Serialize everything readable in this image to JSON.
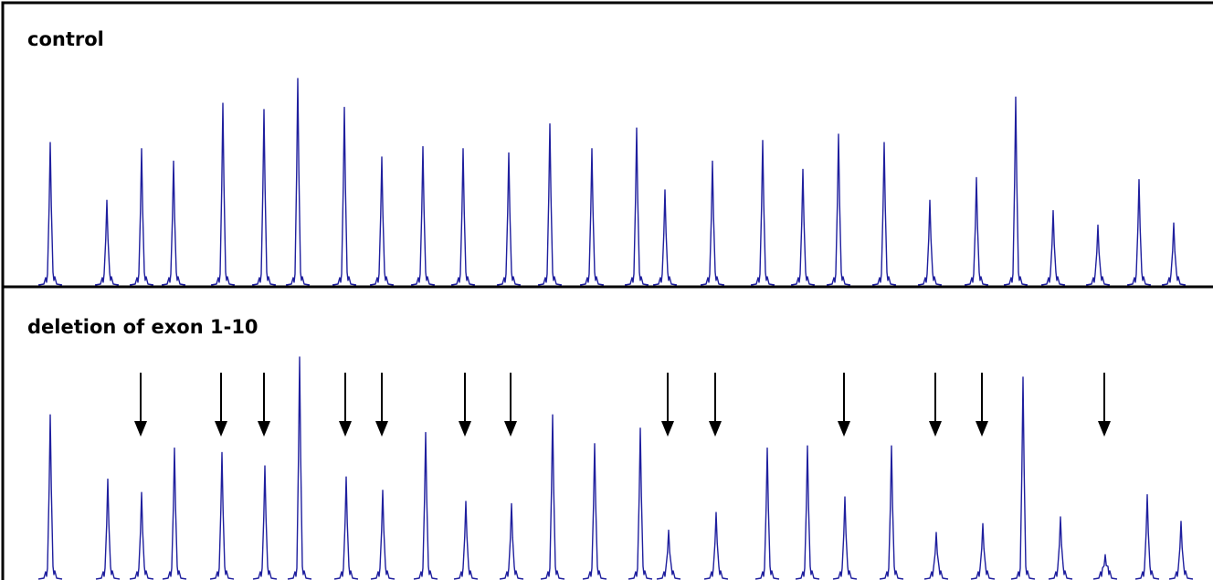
{
  "chart_data": [
    {
      "type": "line",
      "title": "control",
      "line_color": "#1f1f9e",
      "peaks": [
        0.69,
        0.41,
        0.66,
        0.6,
        0.88,
        0.85,
        1.0,
        0.86,
        0.62,
        0.67,
        0.66,
        0.64,
        0.78,
        0.66,
        0.76,
        0.46,
        0.6,
        0.7,
        0.56,
        0.73,
        0.69,
        0.41,
        0.52,
        0.91,
        0.36,
        0.29,
        0.51,
        0.3
      ]
    },
    {
      "type": "line",
      "title": "deletion of exon 1-10",
      "line_color": "#1f1f9e",
      "peaks": [
        0.74,
        0.45,
        0.39,
        0.59,
        0.57,
        0.51,
        1.0,
        0.46,
        0.4,
        0.66,
        0.35,
        0.34,
        0.74,
        0.61,
        0.68,
        0.22,
        0.3,
        0.59,
        0.6,
        0.37,
        0.6,
        0.21,
        0.25,
        0.91,
        0.28,
        0.11,
        0.38,
        0.26
      ],
      "arrows_at_peak_index": [
        2,
        4,
        5,
        7,
        8,
        10,
        11,
        15,
        16,
        19,
        21,
        22,
        25
      ]
    }
  ]
}
